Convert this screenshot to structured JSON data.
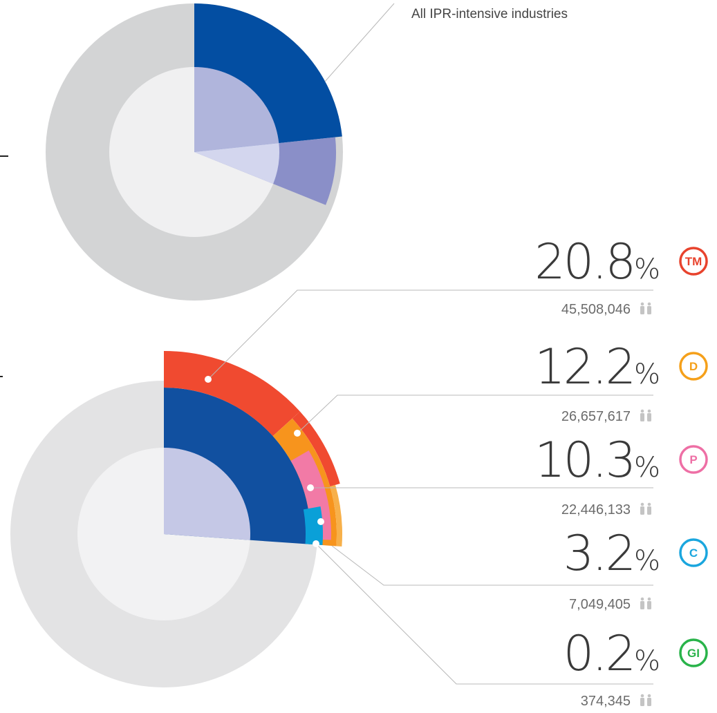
{
  "caption": "All IPR-intensive industries",
  "rights": [
    {
      "share": "20.8",
      "unit": "%",
      "icon": "TM",
      "employment": "45,508,046",
      "color": "#e8432d"
    },
    {
      "share": "12.2",
      "unit": "%",
      "icon": "D",
      "employment": "26,657,617",
      "color": "#f5a01a"
    },
    {
      "share": "10.3",
      "unit": "%",
      "icon": "P",
      "employment": "22,446,133",
      "color": "#ee6fa5"
    },
    {
      "share": "3.2",
      "unit": "%",
      "icon": "C",
      "employment": "7,049,405",
      "color": "#1aa6de"
    },
    {
      "share": "0.2",
      "unit": "%",
      "icon": "GI",
      "employment": "374,345",
      "color": "#29b34a"
    }
  ]
}
